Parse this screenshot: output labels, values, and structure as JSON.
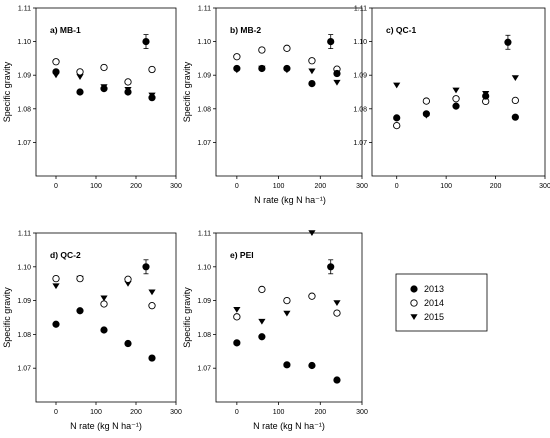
{
  "chart_data": [
    {
      "type": "scatter",
      "title": "a) MB-1",
      "xlabel": "",
      "ylabel": "Specific gravity",
      "xlim": [
        -50,
        300
      ],
      "ylim": [
        1.06,
        1.11
      ],
      "xticks": [
        "0",
        "100",
        "200",
        "300"
      ],
      "yticks": [
        "1.07",
        "1.08",
        "1.09",
        "1.10",
        "1.11"
      ],
      "series": [
        {
          "name": "2013",
          "marker": "filled-circle",
          "x": [
            0,
            60,
            120,
            180,
            225,
            240
          ],
          "y": [
            1.091,
            1.085,
            1.086,
            1.085,
            1.1,
            1.0833
          ]
        },
        {
          "name": "2014",
          "marker": "open-circle",
          "x": [
            0,
            60,
            120,
            180,
            240
          ],
          "y": [
            1.094,
            1.091,
            1.0923,
            1.088,
            1.0917
          ]
        },
        {
          "name": "2015",
          "marker": "triangle-down",
          "x": [
            0,
            60,
            120,
            180,
            240
          ],
          "y": [
            1.09,
            1.0895,
            1.0865,
            1.0857,
            1.084
          ]
        }
      ]
    },
    {
      "type": "scatter",
      "title": "b) MB-2",
      "xlabel": "",
      "ylabel": "Specific gravity",
      "xlim": [
        -50,
        300
      ],
      "ylim": [
        1.06,
        1.11
      ],
      "xticks": [
        "0",
        "100",
        "200",
        "300"
      ],
      "yticks": [
        "1.07",
        "1.08",
        "1.09",
        "1.10",
        "1.11"
      ],
      "series": [
        {
          "name": "2013",
          "marker": "filled-circle",
          "x": [
            0,
            60,
            120,
            180,
            225,
            240
          ],
          "y": [
            1.092,
            1.092,
            1.092,
            1.0875,
            1.1,
            1.0905
          ]
        },
        {
          "name": "2014",
          "marker": "open-circle",
          "x": [
            0,
            60,
            120,
            180,
            240
          ],
          "y": [
            1.0955,
            1.0975,
            1.098,
            1.0943,
            1.0918
          ]
        },
        {
          "name": "2015",
          "marker": "triangle-down",
          "x": [
            0,
            60,
            120,
            180,
            240
          ],
          "y": [
            1.0915,
            1.092,
            1.0915,
            1.0912,
            1.0878
          ]
        }
      ]
    },
    {
      "type": "scatter",
      "title": "c) QC-1",
      "xlabel": "N rate (kg N ha⁻¹)",
      "ylabel": "",
      "xlim": [
        -50,
        300
      ],
      "ylim": [
        1.06,
        1.11
      ],
      "xticks": [
        "0",
        "100",
        "200",
        "300"
      ],
      "yticks": [
        "1.07",
        "1.08",
        "1.09",
        "1.10",
        "1.11"
      ],
      "series": [
        {
          "name": "2013",
          "marker": "filled-circle",
          "x": [
            0,
            60,
            120,
            180,
            225,
            240
          ],
          "y": [
            1.0773,
            1.0785,
            1.0808,
            1.0838,
            1.0998,
            1.0775
          ]
        },
        {
          "name": "2014",
          "marker": "open-circle",
          "x": [
            0,
            60,
            120,
            180,
            240
          ],
          "y": [
            1.075,
            1.0823,
            1.083,
            1.0822,
            1.0825
          ]
        },
        {
          "name": "2015",
          "marker": "triangle-down",
          "x": [
            0,
            60,
            120,
            180,
            240
          ],
          "y": [
            1.087,
            1.078,
            1.0855,
            1.0845,
            1.0892
          ]
        }
      ]
    },
    {
      "type": "scatter",
      "title": "d) QC-2",
      "xlabel": "N rate (kg N ha⁻¹)",
      "ylabel": "Specific gravity",
      "xlim": [
        -50,
        300
      ],
      "ylim": [
        1.06,
        1.11
      ],
      "xticks": [
        "0",
        "100",
        "200",
        "300"
      ],
      "yticks": [
        "1.07",
        "1.08",
        "1.09",
        "1.10",
        "1.11"
      ],
      "series": [
        {
          "name": "2013",
          "marker": "filled-circle",
          "x": [
            0,
            60,
            120,
            180,
            225,
            240
          ],
          "y": [
            1.083,
            1.087,
            1.0813,
            1.0773,
            1.1,
            1.073
          ]
        },
        {
          "name": "2014",
          "marker": "open-circle",
          "x": [
            0,
            60,
            120,
            180,
            240
          ],
          "y": [
            1.0965,
            1.0965,
            1.089,
            1.0963,
            1.0885
          ]
        },
        {
          "name": "2015",
          "marker": "triangle-down",
          "x": [
            0,
            60,
            120,
            180,
            240
          ],
          "y": [
            1.0943,
            1.0965,
            1.0907,
            1.095,
            1.0925
          ]
        }
      ]
    },
    {
      "type": "scatter",
      "title": "e) PEI",
      "xlabel": "N rate (kg N ha⁻¹)",
      "ylabel": "Specific gravity",
      "xlim": [
        -50,
        300
      ],
      "ylim": [
        1.06,
        1.11
      ],
      "xticks": [
        "0",
        "100",
        "200",
        "300"
      ],
      "yticks": [
        "1.07",
        "1.08",
        "1.09",
        "1.10",
        "1.11"
      ],
      "series": [
        {
          "name": "2013",
          "marker": "filled-circle",
          "x": [
            0,
            60,
            120,
            180,
            225,
            240
          ],
          "y": [
            1.0775,
            1.0793,
            1.071,
            1.0708,
            1.1,
            1.0665
          ]
        },
        {
          "name": "2014",
          "marker": "open-circle",
          "x": [
            0,
            60,
            120,
            180,
            240
          ],
          "y": [
            1.0852,
            1.0933,
            1.09,
            1.0913,
            1.0863
          ]
        },
        {
          "name": "2015",
          "marker": "triangle-down",
          "x": [
            0,
            60,
            120,
            180,
            240
          ],
          "y": [
            1.0873,
            1.0838,
            1.0862,
            1.11,
            1.0893
          ]
        }
      ]
    }
  ],
  "legend": {
    "entries": [
      {
        "label": "2013",
        "marker": "filled-circle"
      },
      {
        "label": "2014",
        "marker": "open-circle"
      },
      {
        "label": "2015",
        "marker": "triangle-down"
      }
    ]
  },
  "colors": {
    "marker": "#000000",
    "background": "#ffffff"
  }
}
